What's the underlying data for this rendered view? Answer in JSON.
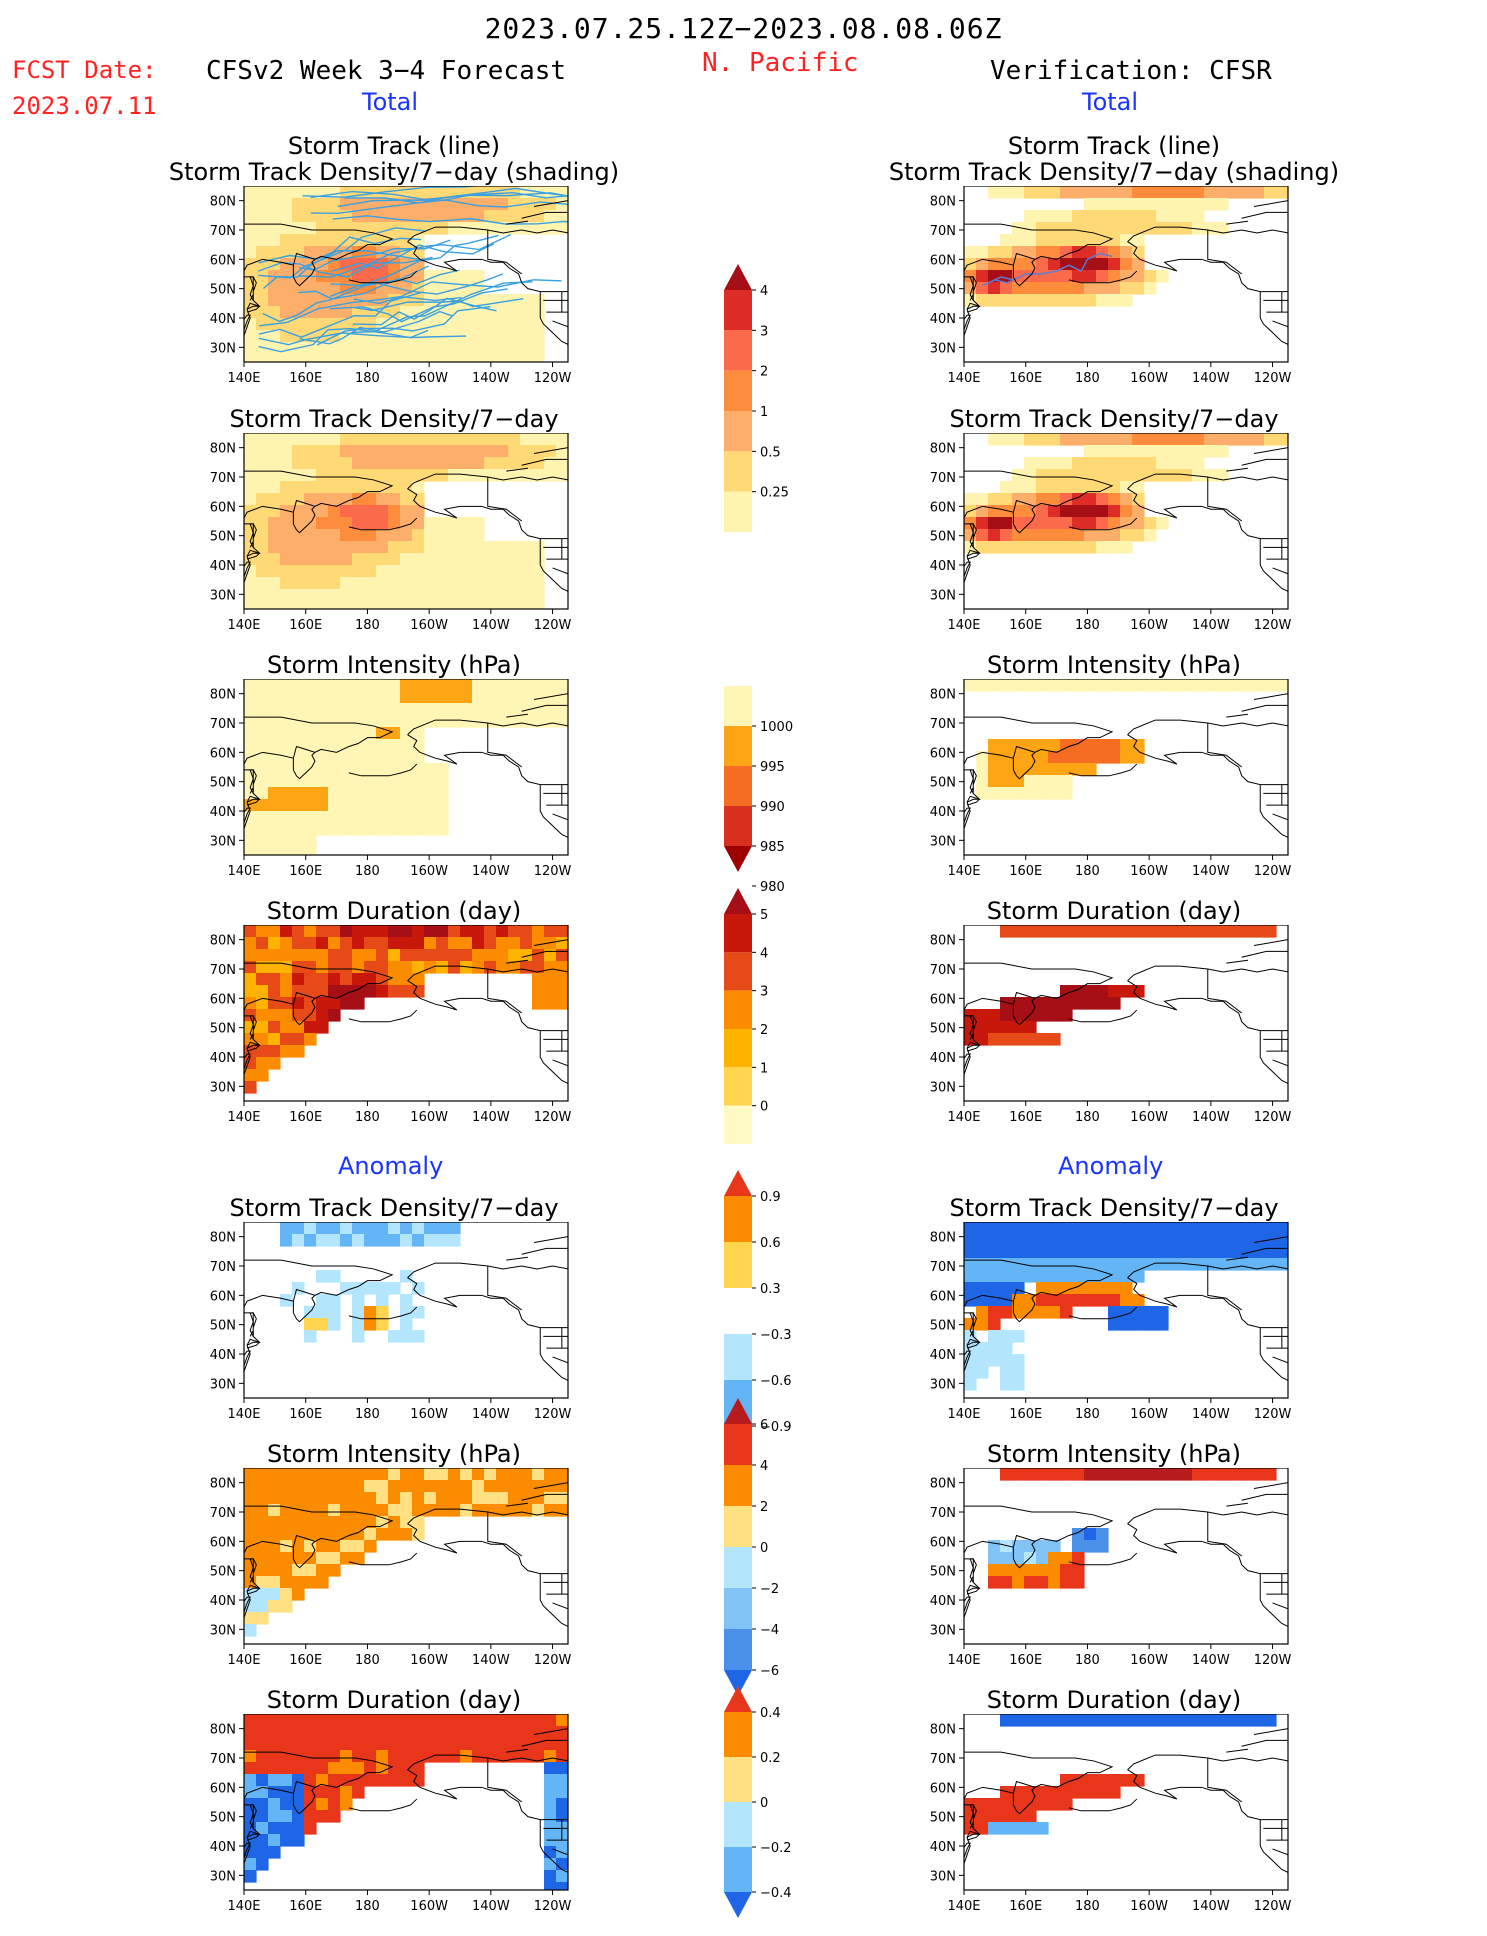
{
  "header": {
    "period": "2023.07.25.12Z−2023.08.08.06Z",
    "fcst_date_label": "FCST Date:",
    "fcst_date_value": "2023.07.11",
    "region": "N. Pacific",
    "left_model": "CFSv2 Week 3−4 Forecast",
    "right_model": "Verification: CFSR"
  },
  "sections": {
    "total": "Total",
    "anomaly": "Anomaly"
  },
  "panel_titles": {
    "track_line": "Storm Track (line)",
    "track_shading": "Storm Track Density/7−day (shading)",
    "density": "Storm Track Density/7−day",
    "intensity": "Storm Intensity (hPa)",
    "duration": "Storm Duration (day)"
  },
  "axes": {
    "lat_labels": [
      "80N",
      "70N",
      "60N",
      "50N",
      "40N",
      "30N"
    ],
    "lon_labels": [
      "140E",
      "160E",
      "180",
      "160W",
      "140W",
      "120W"
    ]
  },
  "colorbars": {
    "density_total": {
      "labels": [
        "4",
        "3",
        "2",
        "1",
        "0.5",
        "0.25"
      ],
      "colors": [
        "#a50f15",
        "#de2d26",
        "#fb6a4a",
        "#fd8d3c",
        "#fdae6b",
        "#fed976",
        "#fff3b0"
      ]
    },
    "intensity_total": {
      "labels": [
        "1000",
        "995",
        "990",
        "985",
        "980"
      ],
      "colors": [
        "#fff6b5",
        "#fda514",
        "#f46d22",
        "#d7301f",
        "#9e0000"
      ]
    },
    "duration_total": {
      "labels": [
        "5",
        "4",
        "3",
        "2",
        "1",
        "0"
      ],
      "colors": [
        "#a50f15",
        "#c8180c",
        "#e64a19",
        "#fb8c00",
        "#ffb300",
        "#ffd54f",
        "#fff9c4"
      ]
    },
    "density_anom": {
      "labels": [
        "0.9",
        "0.6",
        "0.3",
        "−0.3",
        "−0.6",
        "−0.9"
      ],
      "colors": [
        "#e8361a",
        "#fb8c00",
        "#ffd54f",
        "#ffffff",
        "#b3e5fc",
        "#64b5f6",
        "#1e66e6"
      ]
    },
    "intensity_anom": {
      "labels": [
        "6",
        "4",
        "2",
        "0",
        "−2",
        "−4",
        "−6"
      ],
      "colors": [
        "#b71c1c",
        "#e8361a",
        "#fb8c00",
        "#ffe082",
        "#b3e5fc",
        "#81c3f5",
        "#4a90e8",
        "#1e66e6"
      ]
    },
    "duration_anom": {
      "labels": [
        "0.4",
        "0.2",
        "0",
        "−0.2",
        "−0.4"
      ],
      "colors": [
        "#e8361a",
        "#fb8c00",
        "#ffe082",
        "#b3e5fc",
        "#64b5f6",
        "#1e66e6"
      ]
    }
  },
  "palette": {
    "land": "#ffffff",
    "coast": "#000000",
    "track_line_left": "#3aa0e0",
    "track_line_right": "#5a7fd8"
  }
}
